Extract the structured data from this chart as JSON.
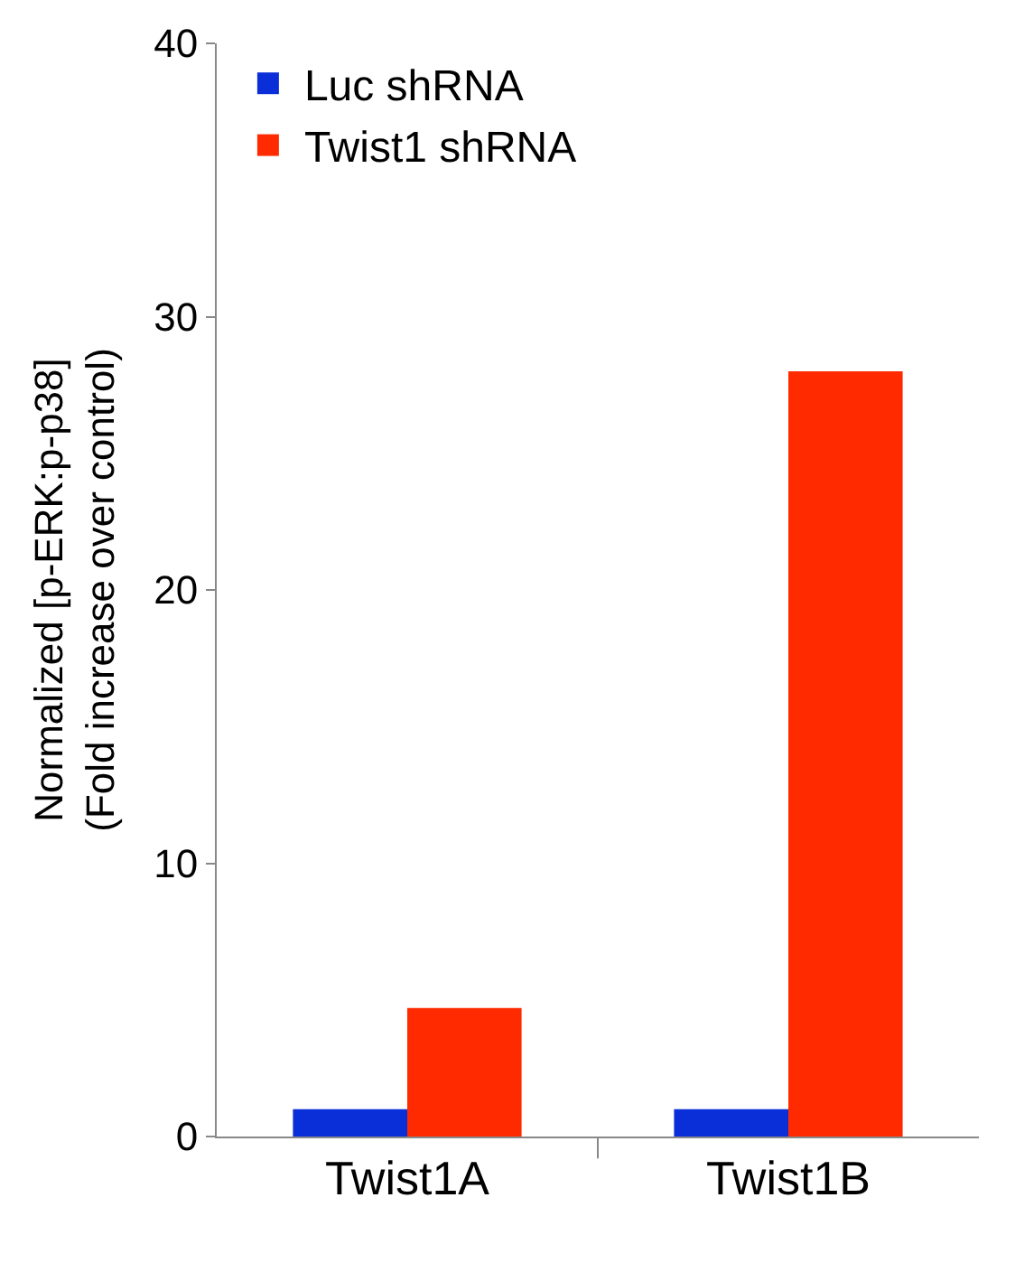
{
  "chart_data": {
    "type": "bar",
    "ylabel": "Normalized [p-ERK:p-p38]\n(Fold increase over control)",
    "categories": [
      "Twist1A",
      "Twist1B"
    ],
    "series": [
      {
        "name": "Luc shRNA",
        "color": "#0a2ed8",
        "values": [
          1,
          1
        ]
      },
      {
        "name": "Twist1 shRNA",
        "color": "#ff2a00",
        "values": [
          4.7,
          28
        ]
      }
    ],
    "ylim": [
      0,
      40
    ],
    "yticks": [
      0,
      10,
      20,
      30,
      40
    ],
    "legend": "top left"
  }
}
